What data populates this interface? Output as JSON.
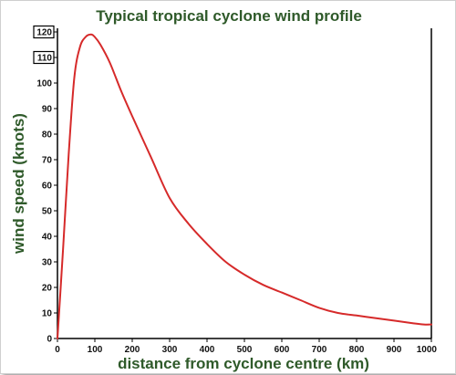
{
  "chart_data": {
    "type": "line",
    "title": "Typical tropical cyclone wind profile",
    "xlabel": "distance from cyclone centre (km)",
    "ylabel": "wind speed (knots)",
    "xlim": [
      0,
      1000
    ],
    "ylim": [
      0,
      120
    ],
    "x_ticks": [
      "0",
      "100",
      "200",
      "300",
      "400",
      "500",
      "600",
      "700",
      "800",
      "900",
      "1000"
    ],
    "y_ticks": [
      "0",
      "10",
      "20",
      "30",
      "40",
      "50",
      "60",
      "70",
      "80",
      "90",
      "100",
      "110",
      "120"
    ],
    "boxed_y_ticks": [
      "110",
      "120"
    ],
    "grid": false,
    "series": [
      {
        "color": "#d62a2a",
        "x": [
          0,
          15,
          30,
          45,
          60,
          75,
          90,
          100,
          115,
          140,
          170,
          200,
          250,
          300,
          350,
          400,
          450,
          500,
          550,
          600,
          650,
          700,
          750,
          800,
          850,
          900,
          950,
          980,
          1000
        ],
        "y": [
          0,
          35,
          72,
          102,
          114,
          118,
          119,
          118,
          115,
          108,
          97,
          87,
          71,
          55,
          45,
          37,
          30,
          25,
          21,
          18,
          15,
          12,
          10,
          9,
          8,
          7,
          6,
          5.5,
          5.5
        ]
      }
    ]
  }
}
